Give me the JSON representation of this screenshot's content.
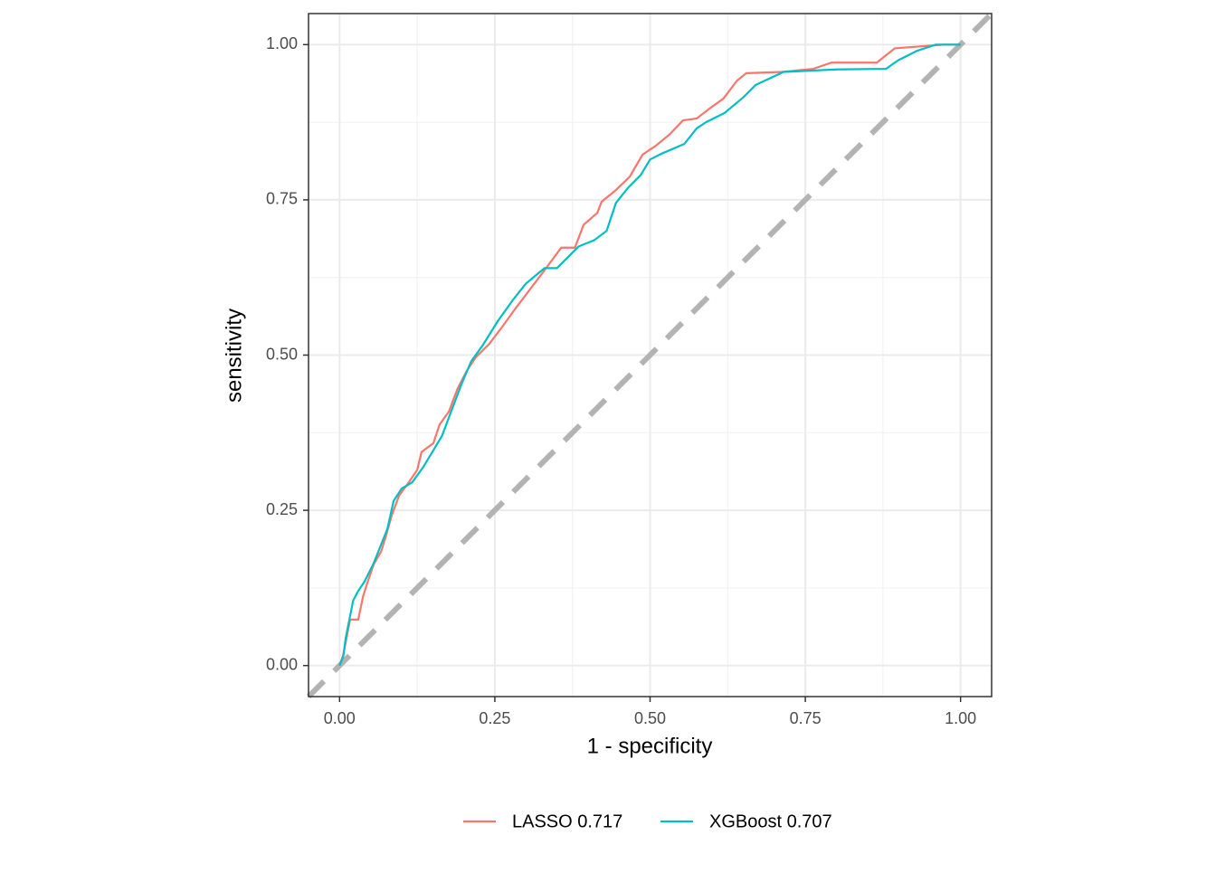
{
  "chart_data": {
    "type": "line",
    "xlabel": "1 - specificity",
    "ylabel": "sensitivity",
    "xlim": [
      -0.05,
      1.05
    ],
    "ylim": [
      -0.05,
      1.05
    ],
    "xticks": [
      {
        "value": 0,
        "label": "0.00"
      },
      {
        "value": 0.25,
        "label": "0.25"
      },
      {
        "value": 0.5,
        "label": "0.50"
      },
      {
        "value": 0.75,
        "label": "0.75"
      },
      {
        "value": 1,
        "label": "1.00"
      }
    ],
    "yticks": [
      {
        "value": 0,
        "label": "0.00"
      },
      {
        "value": 0.25,
        "label": "0.25"
      },
      {
        "value": 0.5,
        "label": "0.50"
      },
      {
        "value": 0.75,
        "label": "0.75"
      },
      {
        "value": 1,
        "label": "1.00"
      }
    ],
    "grid": true,
    "minor_grid": true,
    "diagonal_color": "#b3b3b3",
    "legend": "bottom",
    "series": [
      {
        "name": "LASSO 0.717",
        "color": "#f8766d",
        "x": [
          0,
          0.006,
          0.013,
          0.017,
          0.03,
          0.038,
          0.045,
          0.055,
          0.067,
          0.074,
          0.084,
          0.096,
          0.11,
          0.125,
          0.132,
          0.151,
          0.161,
          0.176,
          0.19,
          0.205,
          0.219,
          0.241,
          0.263,
          0.284,
          0.306,
          0.328,
          0.357,
          0.379,
          0.393,
          0.415,
          0.422,
          0.444,
          0.467,
          0.488,
          0.509,
          0.531,
          0.553,
          0.575,
          0.597,
          0.618,
          0.64,
          0.655,
          0.713,
          0.763,
          0.792,
          0.865,
          0.894,
          0.974,
          1
        ],
        "values": [
          0,
          0.017,
          0.054,
          0.074,
          0.074,
          0.112,
          0.134,
          0.163,
          0.184,
          0.206,
          0.242,
          0.274,
          0.293,
          0.315,
          0.344,
          0.358,
          0.388,
          0.409,
          0.446,
          0.475,
          0.496,
          0.518,
          0.547,
          0.576,
          0.605,
          0.634,
          0.673,
          0.673,
          0.71,
          0.729,
          0.747,
          0.765,
          0.787,
          0.823,
          0.837,
          0.855,
          0.878,
          0.881,
          0.898,
          0.913,
          0.942,
          0.954,
          0.956,
          0.961,
          0.971,
          0.971,
          0.994,
          1,
          1
        ]
      },
      {
        "name": "XGBoost 0.707",
        "color": "#00bfc4",
        "x": [
          0,
          0.006,
          0.01,
          0.016,
          0.022,
          0.03,
          0.04,
          0.055,
          0.065,
          0.077,
          0.087,
          0.1,
          0.117,
          0.135,
          0.15,
          0.165,
          0.18,
          0.197,
          0.212,
          0.23,
          0.255,
          0.28,
          0.3,
          0.33,
          0.35,
          0.385,
          0.41,
          0.43,
          0.445,
          0.465,
          0.485,
          0.5,
          0.52,
          0.555,
          0.575,
          0.59,
          0.62,
          0.65,
          0.67,
          0.715,
          0.8,
          0.88,
          0.9,
          0.93,
          0.96,
          1
        ],
        "values": [
          0,
          0.015,
          0.045,
          0.075,
          0.105,
          0.12,
          0.135,
          0.165,
          0.19,
          0.22,
          0.265,
          0.285,
          0.295,
          0.32,
          0.345,
          0.37,
          0.41,
          0.455,
          0.49,
          0.515,
          0.555,
          0.59,
          0.615,
          0.64,
          0.64,
          0.675,
          0.685,
          0.7,
          0.745,
          0.77,
          0.79,
          0.815,
          0.825,
          0.84,
          0.865,
          0.875,
          0.89,
          0.915,
          0.935,
          0.956,
          0.96,
          0.961,
          0.975,
          0.99,
          1,
          1
        ]
      }
    ]
  }
}
